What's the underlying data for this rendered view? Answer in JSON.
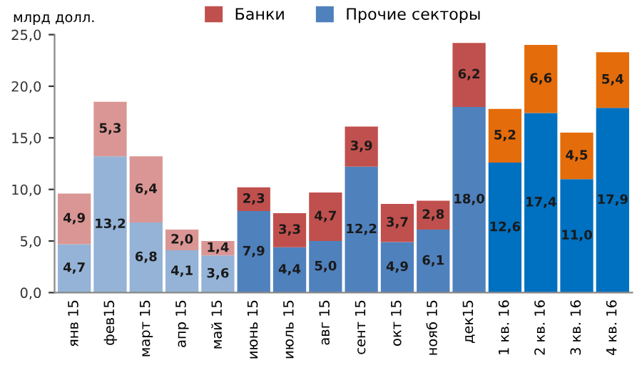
{
  "chart_data": {
    "type": "bar",
    "stacked": true,
    "ylabel": "млрд долл.",
    "categories": [
      "янв 15",
      "фев15",
      "март 15",
      "апр 15",
      "май 15",
      "июнь 15",
      "июль 15",
      "авг 15",
      "сент 15",
      "окт 15",
      "нояб 15",
      "дек15",
      "1 кв. 16",
      "2 кв. 16",
      "3 кв. 16",
      "4 кв. 16"
    ],
    "series": [
      {
        "name": "Прочие секторы",
        "color": "#4f81bd",
        "colors": [
          "#95b3d7",
          "#95b3d7",
          "#95b3d7",
          "#95b3d7",
          "#95b3d7",
          "#4f81bd",
          "#4f81bd",
          "#4f81bd",
          "#4f81bd",
          "#4f81bd",
          "#4f81bd",
          "#4f81bd",
          "#0070c0",
          "#0070c0",
          "#0070c0",
          "#0070c0"
        ],
        "values": [
          4.7,
          13.2,
          6.8,
          4.1,
          3.6,
          7.9,
          4.4,
          5.0,
          12.2,
          4.9,
          6.1,
          18.0,
          12.6,
          17.4,
          11.0,
          17.9
        ],
        "value_labels": [
          "4,7",
          "13,2",
          "6,8",
          "4,1",
          "3,6",
          "7,9",
          "4,4",
          "5,0",
          "12,2",
          "4,9",
          "6,1",
          "18,0",
          "12,6",
          "17,4",
          "11,0",
          "17,9"
        ]
      },
      {
        "name": "Банки",
        "color": "#c0504d",
        "colors": [
          "#da9694",
          "#da9694",
          "#da9694",
          "#da9694",
          "#da9694",
          "#c0504d",
          "#c0504d",
          "#c0504d",
          "#c0504d",
          "#c0504d",
          "#c0504d",
          "#c0504d",
          "#e46c0a",
          "#e46c0a",
          "#e46c0a",
          "#e46c0a"
        ],
        "values": [
          4.9,
          5.3,
          6.4,
          2.0,
          1.4,
          2.3,
          3.3,
          4.7,
          3.9,
          3.7,
          2.8,
          6.2,
          5.2,
          6.6,
          4.5,
          5.4
        ],
        "value_labels": [
          "4,9",
          "5,3",
          "6,4",
          "2,0",
          "1,4",
          "2,3",
          "3,3",
          "4,7",
          "3,9",
          "3,7",
          "2,8",
          "6,2",
          "5,2",
          "6,6",
          "4,5",
          "5,4"
        ]
      }
    ],
    "ylim": [
      0,
      25
    ],
    "yticks": [
      {
        "value": 0,
        "label": "0,0"
      },
      {
        "value": 5,
        "label": "5,0"
      },
      {
        "value": 10,
        "label": "10,0"
      },
      {
        "value": 15,
        "label": "15,0"
      },
      {
        "value": 20,
        "label": "20,0"
      },
      {
        "value": 25,
        "label": "25,0"
      }
    ],
    "grid": false,
    "legend": "top"
  }
}
